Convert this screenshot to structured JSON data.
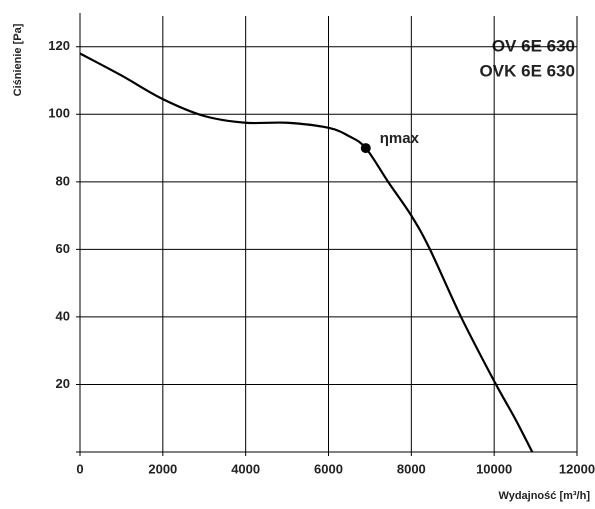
{
  "chart_data": {
    "type": "line",
    "title": [
      "OV 6E 630",
      "OVK 6E 630"
    ],
    "x_label": "Wydajność [m³/h]",
    "y_label": "Ciśnienie [Pa]",
    "x": [
      0,
      1000,
      2000,
      3000,
      4000,
      5000,
      6000,
      6500,
      6900,
      7440,
      8000,
      8450,
      9200,
      10000,
      10500,
      10920
    ],
    "series": [
      {
        "name": "OV 6E 630",
        "color": "#000000",
        "values": [
          118,
          111.5,
          104.5,
          99.5,
          97.5,
          97.5,
          96,
          93.5,
          90,
          80,
          70,
          60,
          40,
          21,
          10,
          0
        ]
      }
    ],
    "annotation": {
      "text": "ηmax",
      "x": 6900,
      "y": 90
    },
    "xlim": [
      0,
      12000
    ],
    "xticks": [
      0,
      2000,
      4000,
      6000,
      8000,
      10000,
      12000
    ],
    "ylim": [
      0,
      130
    ],
    "yticks": [
      20,
      40,
      60,
      80,
      100,
      120
    ],
    "grid": true
  }
}
